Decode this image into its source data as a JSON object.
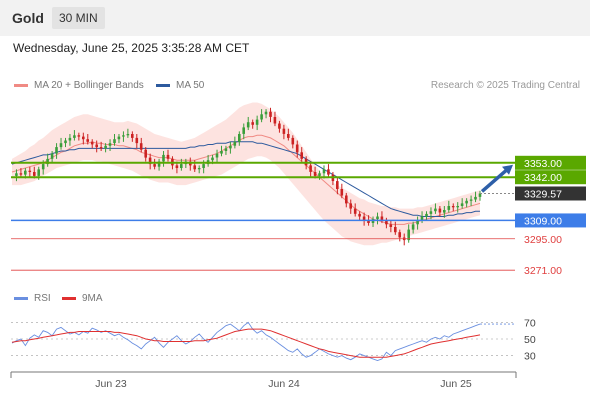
{
  "header": {
    "symbol": "Gold",
    "timeframe": "30 MIN",
    "datetime": "Wednesday, June 25, 2025 3:35:28 AM CET"
  },
  "legend": {
    "ma20": "MA 20 + Bollinger Bands",
    "ma50": "MA 50",
    "research": "Research © 2025 Trading Central",
    "rsi": "RSI",
    "ma9": "9MA"
  },
  "colors": {
    "ma20": "#f08a84",
    "band": "#fde0dd",
    "ma50": "#2d5a9e",
    "resistance": "#5aa800",
    "support": "#3d7de8",
    "level_red": "#e04040",
    "last_price": "#333333",
    "arrow": "#2d5fa8",
    "rsi": "#6a8fe0",
    "rsi_ma": "#e03030",
    "candle_up": "#3a9e3a",
    "candle_down": "#cc2222"
  },
  "chart_data": {
    "type": "candlestick",
    "instrument": "Gold",
    "interval": "30 MIN",
    "x_labels": [
      "Jun 23",
      "Jun 24",
      "Jun 25"
    ],
    "price_levels": [
      {
        "value": "3353.00",
        "kind": "resistance"
      },
      {
        "value": "3342.00",
        "kind": "resistance"
      },
      {
        "value": "3329.57",
        "kind": "last_price"
      },
      {
        "value": "3309.00",
        "kind": "support"
      },
      {
        "value": "3295.00",
        "kind": "level"
      },
      {
        "value": "3271.00",
        "kind": "level"
      }
    ],
    "close_series": [
      3343,
      3345,
      3344,
      3347,
      3346,
      3343,
      3348,
      3352,
      3356,
      3360,
      3365,
      3368,
      3370,
      3372,
      3374,
      3373,
      3371,
      3369,
      3367,
      3365,
      3364,
      3366,
      3368,
      3371,
      3373,
      3374,
      3375,
      3372,
      3368,
      3363,
      3357,
      3352,
      3350,
      3354,
      3359,
      3356,
      3351,
      3349,
      3352,
      3354,
      3351,
      3348,
      3349,
      3352,
      3355,
      3357,
      3360,
      3362,
      3364,
      3366,
      3369,
      3375,
      3380,
      3384,
      3382,
      3386,
      3390,
      3392,
      3388,
      3383,
      3379,
      3375,
      3372,
      3367,
      3361,
      3356,
      3351,
      3346,
      3343,
      3345,
      3348,
      3344,
      3339,
      3333,
      3328,
      3322,
      3318,
      3314,
      3312,
      3309,
      3307,
      3310,
      3312,
      3309,
      3306,
      3304,
      3300,
      3296,
      3294,
      3302,
      3306,
      3309,
      3312,
      3314,
      3316,
      3318,
      3315,
      3317,
      3320,
      3319,
      3320,
      3322,
      3324,
      3325,
      3327,
      3329.57
    ],
    "ma20_series": [
      3346,
      3347,
      3348,
      3349,
      3350,
      3351,
      3352,
      3353,
      3355,
      3357,
      3359,
      3361,
      3362,
      3364,
      3366,
      3367,
      3368,
      3368,
      3369,
      3368,
      3368,
      3367,
      3367,
      3367,
      3366,
      3366,
      3365,
      3364,
      3363,
      3361,
      3360,
      3359,
      3358,
      3357,
      3357,
      3357,
      3356,
      3355,
      3355,
      3355,
      3355,
      3355,
      3356,
      3357,
      3358,
      3359,
      3360,
      3362,
      3364,
      3366,
      3368,
      3370,
      3372,
      3373,
      3373,
      3374,
      3374,
      3373,
      3372,
      3370,
      3368,
      3366,
      3363,
      3360,
      3357,
      3354,
      3351,
      3348,
      3345,
      3342,
      3339,
      3336,
      3333,
      3330,
      3327,
      3324,
      3321,
      3318,
      3316,
      3314,
      3312,
      3310,
      3309,
      3308,
      3307,
      3306,
      3306,
      3306,
      3306,
      3307,
      3307,
      3308,
      3309,
      3310,
      3311,
      3312,
      3313,
      3314,
      3315,
      3316,
      3317,
      3318,
      3319,
      3320,
      3321,
      3322
    ],
    "upper_band_series": [
      3356,
      3358,
      3360,
      3362,
      3365,
      3367,
      3370,
      3372,
      3375,
      3378,
      3380,
      3382,
      3384,
      3386,
      3388,
      3389,
      3390,
      3390,
      3389,
      3388,
      3387,
      3386,
      3385,
      3384,
      3384,
      3384,
      3385,
      3384,
      3383,
      3381,
      3379,
      3377,
      3375,
      3374,
      3373,
      3372,
      3371,
      3370,
      3369,
      3370,
      3371,
      3372,
      3374,
      3376,
      3378,
      3380,
      3382,
      3384,
      3386,
      3389,
      3392,
      3395,
      3397,
      3398,
      3399,
      3399,
      3398,
      3396,
      3394,
      3391,
      3388,
      3384,
      3380,
      3376,
      3371,
      3366,
      3361,
      3356,
      3351,
      3347,
      3344,
      3341,
      3338,
      3336,
      3334,
      3332,
      3330,
      3328,
      3326,
      3325,
      3323,
      3322,
      3321,
      3320,
      3320,
      3319,
      3319,
      3318,
      3318,
      3318,
      3318,
      3319,
      3319,
      3320,
      3321,
      3322,
      3323,
      3324,
      3325,
      3326,
      3327,
      3328,
      3329,
      3330,
      3331,
      3332
    ],
    "lower_band_series": [
      3336,
      3336,
      3336,
      3337,
      3338,
      3339,
      3341,
      3343,
      3345,
      3347,
      3349,
      3350,
      3351,
      3352,
      3353,
      3354,
      3355,
      3355,
      3355,
      3354,
      3354,
      3353,
      3352,
      3351,
      3350,
      3349,
      3348,
      3347,
      3345,
      3343,
      3342,
      3340,
      3339,
      3338,
      3338,
      3338,
      3337,
      3336,
      3336,
      3336,
      3337,
      3338,
      3339,
      3340,
      3341,
      3342,
      3343,
      3344,
      3346,
      3348,
      3350,
      3352,
      3354,
      3356,
      3357,
      3358,
      3358,
      3357,
      3355,
      3352,
      3349,
      3345,
      3341,
      3337,
      3333,
      3329,
      3325,
      3321,
      3317,
      3313,
      3309,
      3306,
      3303,
      3300,
      3297,
      3295,
      3293,
      3292,
      3291,
      3290,
      3290,
      3290,
      3291,
      3292,
      3292,
      3293,
      3294,
      3295,
      3296,
      3297,
      3298,
      3299,
      3300,
      3301,
      3302,
      3303,
      3304,
      3305,
      3306,
      3307,
      3308,
      3309,
      3310,
      3311,
      3312,
      3313
    ],
    "ma50_series": [
      3352,
      3353,
      3354,
      3355,
      3356,
      3357,
      3358,
      3359,
      3359,
      3360,
      3361,
      3362,
      3362,
      3363,
      3363,
      3364,
      3364,
      3364,
      3364,
      3364,
      3364,
      3364,
      3364,
      3364,
      3364,
      3364,
      3364,
      3364,
      3364,
      3364,
      3364,
      3364,
      3364,
      3364,
      3364,
      3364,
      3364,
      3364,
      3364,
      3364,
      3365,
      3365,
      3366,
      3366,
      3367,
      3367,
      3368,
      3368,
      3368,
      3369,
      3369,
      3369,
      3369,
      3369,
      3369,
      3368,
      3368,
      3367,
      3366,
      3365,
      3364,
      3363,
      3362,
      3361,
      3360,
      3358,
      3356,
      3354,
      3352,
      3350,
      3348,
      3346,
      3344,
      3342,
      3340,
      3338,
      3336,
      3334,
      3332,
      3330,
      3328,
      3326,
      3324,
      3322,
      3320,
      3318,
      3317,
      3316,
      3315,
      3314,
      3313,
      3313,
      3312,
      3312,
      3312,
      3312,
      3312,
      3312,
      3313,
      3313,
      3314,
      3314,
      3315,
      3315,
      3316,
      3316
    ],
    "y_range": [
      3262,
      3404
    ],
    "rsi": {
      "ticks": [
        "70",
        "50",
        "30"
      ],
      "y_range": [
        15,
        85
      ],
      "rsi_series": [
        45,
        48,
        50,
        42,
        51,
        55,
        52,
        60,
        58,
        54,
        62,
        64,
        60,
        56,
        58,
        55,
        59,
        57,
        63,
        61,
        58,
        60,
        57,
        54,
        56,
        52,
        49,
        45,
        42,
        38,
        44,
        48,
        52,
        45,
        40,
        46,
        50,
        54,
        48,
        44,
        47,
        52,
        56,
        50,
        46,
        52,
        58,
        62,
        66,
        68,
        64,
        60,
        66,
        70,
        62,
        57,
        60,
        55,
        52,
        48,
        44,
        40,
        36,
        34,
        38,
        32,
        28,
        30,
        34,
        38,
        35,
        32,
        30,
        28,
        30,
        27,
        25,
        28,
        32,
        30,
        28,
        26,
        24,
        26,
        34,
        30,
        36,
        38,
        40,
        42,
        44,
        46,
        48,
        46,
        50,
        52,
        50,
        54,
        52,
        56,
        58,
        60,
        62,
        64,
        66,
        68
      ],
      "ma9_series": [
        46,
        47,
        48,
        48,
        49,
        50,
        51,
        52,
        53,
        54,
        55,
        56,
        57,
        58,
        58,
        59,
        59,
        59,
        59,
        59,
        59,
        59,
        59,
        58,
        58,
        57,
        56,
        55,
        54,
        52,
        50,
        49,
        48,
        48,
        47,
        47,
        47,
        47,
        47,
        47,
        47,
        48,
        48,
        48,
        49,
        50,
        51,
        53,
        55,
        57,
        59,
        60,
        61,
        62,
        62,
        62,
        62,
        61,
        60,
        58,
        56,
        54,
        52,
        50,
        48,
        46,
        44,
        42,
        40,
        38,
        37,
        35,
        34,
        33,
        32,
        31,
        30,
        29,
        28,
        28,
        28,
        28,
        28,
        28,
        28,
        29,
        30,
        31,
        32,
        34,
        36,
        38,
        40,
        42,
        44,
        45,
        46,
        47,
        48,
        49,
        50,
        51,
        52,
        53,
        54,
        55
      ]
    },
    "forecast": {
      "direction": "up",
      "from": "3329.57",
      "to": "3353.00"
    }
  }
}
